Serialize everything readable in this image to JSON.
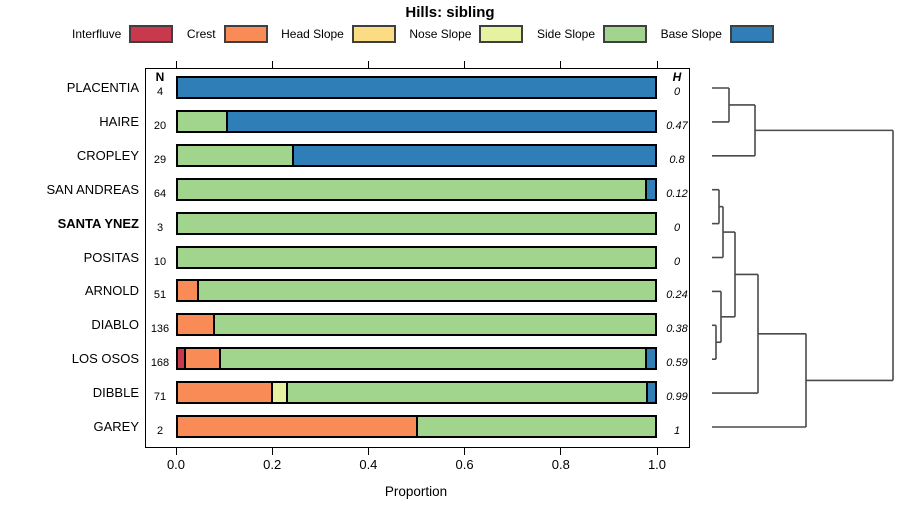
{
  "title": "Hills: sibling",
  "axis": {
    "xlabel": "Proportion",
    "tick_labels": [
      "0.0",
      "0.2",
      "0.4",
      "0.6",
      "0.8",
      "1.0"
    ],
    "tick_values": [
      0,
      0.2,
      0.4,
      0.6,
      0.8,
      1.0
    ]
  },
  "columns": {
    "n_header": "N",
    "h_header": "H"
  },
  "colors": {
    "interfluve": "#C9394E",
    "crest": "#F98C56",
    "head_slope": "#FBDB84",
    "nose_slope": "#E7F2A0",
    "side_slope": "#A1D58E",
    "base_slope": "#2F7EB8"
  },
  "legend": [
    {
      "label": "Interfluve",
      "key": "interfluve"
    },
    {
      "label": "Crest",
      "key": "crest"
    },
    {
      "label": "Head Slope",
      "key": "head_slope"
    },
    {
      "label": "Nose Slope",
      "key": "nose_slope"
    },
    {
      "label": "Side Slope",
      "key": "side_slope"
    },
    {
      "label": "Base Slope",
      "key": "base_slope"
    }
  ],
  "chart_data": {
    "type": "bar",
    "orientation": "horizontal",
    "stacked": true,
    "title": "Hills: sibling",
    "xlabel": "Proportion",
    "xlim": [
      0,
      1
    ],
    "legend_position": "top",
    "grid": false,
    "categories": [
      "PLACENTIA",
      "HAIRE",
      "CROPLEY",
      "SAN ANDREAS",
      "SANTA YNEZ",
      "POSITAS",
      "ARNOLD",
      "DIABLO",
      "LOS OSOS",
      "DIBBLE",
      "GAREY"
    ],
    "rows": [
      {
        "label": "PLACENTIA",
        "n": "4",
        "h": "0",
        "emphasis": false,
        "segments": [
          [
            "base_slope",
            1.0
          ]
        ]
      },
      {
        "label": "HAIRE",
        "n": "20",
        "h": "0.47",
        "emphasis": false,
        "segments": [
          [
            "side_slope",
            0.1
          ],
          [
            "base_slope",
            0.9
          ]
        ]
      },
      {
        "label": "CROPLEY",
        "n": "29",
        "h": "0.8",
        "emphasis": false,
        "segments": [
          [
            "side_slope",
            0.241
          ],
          [
            "base_slope",
            0.759
          ]
        ]
      },
      {
        "label": "SAN ANDREAS",
        "n": "64",
        "h": "0.12",
        "emphasis": false,
        "segments": [
          [
            "side_slope",
            0.984
          ],
          [
            "base_slope",
            0.016
          ]
        ]
      },
      {
        "label": "SANTA YNEZ",
        "n": "3",
        "h": "0",
        "emphasis": true,
        "segments": [
          [
            "side_slope",
            1.0
          ]
        ]
      },
      {
        "label": "POSITAS",
        "n": "10",
        "h": "0",
        "emphasis": false,
        "segments": [
          [
            "side_slope",
            1.0
          ]
        ]
      },
      {
        "label": "ARNOLD",
        "n": "51",
        "h": "0.24",
        "emphasis": false,
        "segments": [
          [
            "crest",
            0.039
          ],
          [
            "side_slope",
            0.961
          ]
        ]
      },
      {
        "label": "DIABLO",
        "n": "136",
        "h": "0.38",
        "emphasis": false,
        "segments": [
          [
            "crest",
            0.074
          ],
          [
            "side_slope",
            0.926
          ]
        ]
      },
      {
        "label": "LOS OSOS",
        "n": "168",
        "h": "0.59",
        "emphasis": false,
        "segments": [
          [
            "interfluve",
            0.012
          ],
          [
            "crest",
            0.071
          ],
          [
            "side_slope",
            0.899
          ],
          [
            "base_slope",
            0.018
          ]
        ]
      },
      {
        "label": "DIBBLE",
        "n": "71",
        "h": "0.99",
        "emphasis": false,
        "segments": [
          [
            "crest",
            0.197
          ],
          [
            "nose_slope",
            0.028
          ],
          [
            "side_slope",
            0.761
          ],
          [
            "base_slope",
            0.014
          ]
        ]
      },
      {
        "label": "GAREY",
        "n": "2",
        "h": "1",
        "emphasis": false,
        "segments": [
          [
            "crest",
            0.5
          ],
          [
            "side_slope",
            0.5
          ]
        ]
      }
    ],
    "dendrogram": {
      "merges": [
        {
          "id": "m1",
          "a": "leaf:0",
          "b": "leaf:1",
          "x": 729
        },
        {
          "id": "m2",
          "a": "m1",
          "b": "leaf:2",
          "x": 755
        },
        {
          "id": "m3",
          "a": "leaf:3",
          "b": "leaf:4",
          "x": 719
        },
        {
          "id": "m4",
          "a": "m3",
          "b": "leaf:5",
          "x": 723
        },
        {
          "id": "m5",
          "a": "leaf:7",
          "b": "leaf:8",
          "x": 716
        },
        {
          "id": "m6",
          "a": "leaf:6",
          "b": "m5",
          "x": 721
        },
        {
          "id": "m7",
          "a": "m4",
          "b": "m6",
          "x": 735
        },
        {
          "id": "m8",
          "a": "m7",
          "b": "leaf:9",
          "x": 758
        },
        {
          "id": "m9",
          "a": "m8",
          "b": "leaf:10",
          "x": 806
        },
        {
          "id": "m10",
          "a": "m2",
          "b": "m9",
          "x": 893
        }
      ]
    }
  }
}
